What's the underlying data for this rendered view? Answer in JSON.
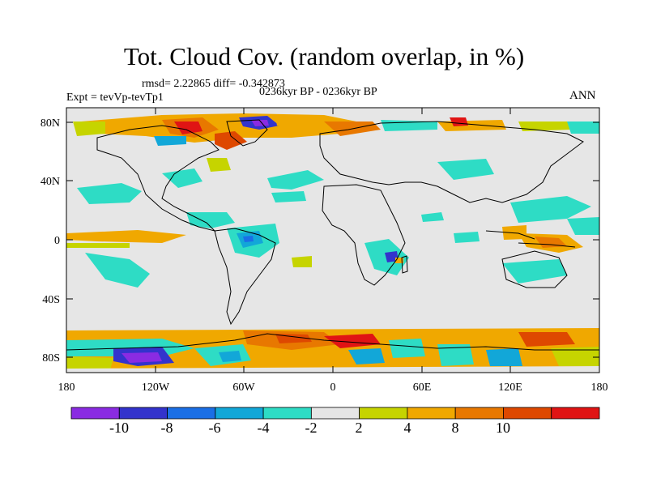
{
  "title": "Tot. Cloud Cov. (random overlap, in %)",
  "stats": "rmsd= 2.22865 diff= -0.342873",
  "period": "0236kyr BP - 0236kyr BP",
  "experiment": "Expt = tevVp-tevTp1",
  "season": "ANN",
  "map": {
    "lat_ticks": [
      "80N",
      "40N",
      "0",
      "40S",
      "80S"
    ],
    "lon_ticks": [
      "180",
      "120W",
      "60W",
      "0",
      "60E",
      "120E",
      "180"
    ],
    "background_color": "#e6e6e6"
  },
  "colorbar": {
    "labels": [
      "-10",
      "-8",
      "-6",
      "-4",
      "-2",
      "2",
      "4",
      "8",
      "10"
    ],
    "colors": [
      "#8a2be2",
      "#3333cc",
      "#1a6fe6",
      "#12a7d8",
      "#2edcc5",
      "#e6e6e6",
      "#c6d400",
      "#f0a800",
      "#e87800",
      "#de4800",
      "#e01414"
    ]
  }
}
